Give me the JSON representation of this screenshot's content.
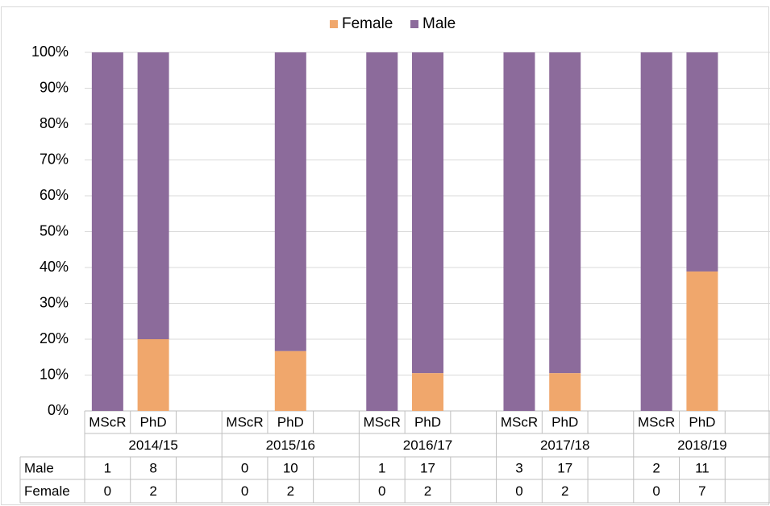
{
  "chart_data": {
    "type": "bar",
    "stacked": "percent",
    "legend": {
      "position": "top",
      "items": [
        {
          "label": "Female",
          "color": "#f0a76c"
        },
        {
          "label": "Male",
          "color": "#8c6b9b"
        }
      ]
    },
    "y_ticks": [
      "0%",
      "10%",
      "20%",
      "30%",
      "40%",
      "50%",
      "60%",
      "70%",
      "80%",
      "90%",
      "100%"
    ],
    "ylim": [
      0,
      100
    ],
    "grid": true,
    "groups": [
      "2014/15",
      "2015/16",
      "2016/17",
      "2017/18",
      "2018/19"
    ],
    "subcategories": [
      "MScR",
      "PhD"
    ],
    "series": [
      {
        "name": "Female",
        "color": "#f0a76c",
        "values": [
          [
            0,
            2
          ],
          [
            0,
            2
          ],
          [
            0,
            2
          ],
          [
            0,
            2
          ],
          [
            0,
            7
          ]
        ]
      },
      {
        "name": "Male",
        "color": "#8c6b9b",
        "values": [
          [
            1,
            8
          ],
          [
            0,
            10
          ],
          [
            1,
            17
          ],
          [
            3,
            17
          ],
          [
            2,
            11
          ]
        ]
      }
    ],
    "table": {
      "row_labels": [
        "Male",
        "Female"
      ],
      "rows": [
        [
          [
            "1",
            "8"
          ],
          [
            "0",
            "10"
          ],
          [
            "1",
            "17"
          ],
          [
            "3",
            "17"
          ],
          [
            "2",
            "11"
          ]
        ],
        [
          [
            "0",
            "2"
          ],
          [
            "0",
            "2"
          ],
          [
            "0",
            "2"
          ],
          [
            "0",
            "2"
          ],
          [
            "0",
            "7"
          ]
        ]
      ]
    }
  }
}
